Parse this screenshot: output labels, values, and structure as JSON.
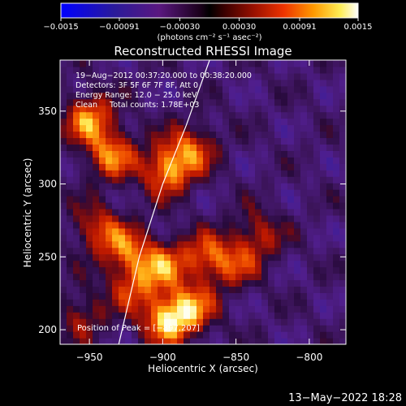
{
  "colorbar": {
    "ticks": [
      {
        "value": -0.0015,
        "label": "−0.0015"
      },
      {
        "value": -0.00091,
        "label": "−0.00091"
      },
      {
        "value": -0.0003,
        "label": "−0.00030"
      },
      {
        "value": 0.0003,
        "label": "0.00030"
      },
      {
        "value": 0.00091,
        "label": "0.00091"
      },
      {
        "value": 0.0015,
        "label": "0.0015"
      }
    ],
    "range": [
      -0.0015,
      0.0015
    ],
    "unit_label": "(photons cm⁻² s⁻¹ asec⁻²)"
  },
  "chart_data": {
    "type": "heatmap",
    "title": "Reconstructed RHESSI Image",
    "xlabel": "Heliocentric X (arcsec)",
    "ylabel": "Heliocentric Y (arcsec)",
    "xlim": [
      -970,
      -775
    ],
    "ylim": [
      190,
      385
    ],
    "xticks": [
      -950,
      -900,
      -850,
      -800
    ],
    "yticks": [
      200,
      250,
      300,
      350
    ],
    "xtick_labels": [
      "−950",
      "−900",
      "−850",
      "−800"
    ],
    "ytick_labels": [
      "200",
      "250",
      "300",
      "350"
    ],
    "annotations": [
      "19−Aug−2012 00:37:20.000 to 00:38:20.000",
      "Detectors: 3F 5F 6F 7F 8F, Att 0",
      "Energy Range: 12.0 − 25.0 keV",
      "Clean     Total counts: 1.78E+03"
    ],
    "peak_label": "Position of Peak = [−897,207]",
    "peak": [
      -897,
      207
    ],
    "limb_curve": [
      [
        -930,
        190
      ],
      [
        -916,
        250
      ],
      [
        -900,
        300
      ],
      [
        -884,
        340
      ],
      [
        -868,
        385
      ]
    ],
    "sources": [
      {
        "x": -950,
        "y": 345,
        "intensity": 0.0013
      },
      {
        "x": -935,
        "y": 320,
        "intensity": 0.0012
      },
      {
        "x": -897,
        "y": 310,
        "intensity": 0.0014
      },
      {
        "x": -880,
        "y": 325,
        "intensity": 0.001
      },
      {
        "x": -945,
        "y": 270,
        "intensity": 0.0009
      },
      {
        "x": -925,
        "y": 255,
        "intensity": 0.001
      },
      {
        "x": -900,
        "y": 245,
        "intensity": 0.0011
      },
      {
        "x": -870,
        "y": 250,
        "intensity": 0.001
      },
      {
        "x": -920,
        "y": 230,
        "intensity": 0.0009
      },
      {
        "x": -897,
        "y": 207,
        "intensity": 0.0015
      },
      {
        "x": -835,
        "y": 265,
        "intensity": 0.0008
      },
      {
        "x": -850,
        "y": 245,
        "intensity": 0.0007
      },
      {
        "x": -955,
        "y": 210,
        "intensity": 0.0007
      },
      {
        "x": -880,
        "y": 215,
        "intensity": 0.0011
      }
    ]
  },
  "footer": {
    "timestamp": "13−May−2022 18:28"
  }
}
